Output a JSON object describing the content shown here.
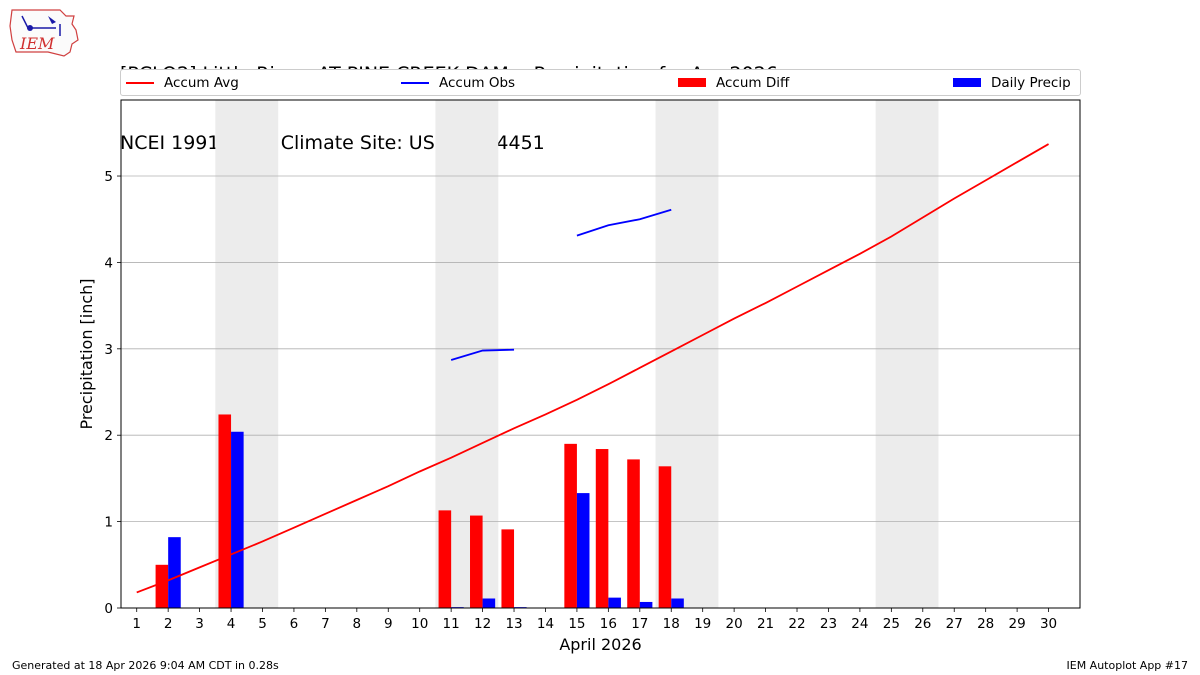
{
  "header": {
    "title_line1": "[PCLO2] Little River  AT PINE CREEK DAM :: Precipitation for Apr 2026",
    "title_line2": "NCEI 1991-2020 Climate Site: USC00344451",
    "logo_text": "IEM"
  },
  "legend": [
    {
      "label": "Accum Avg",
      "kind": "line",
      "color": "#ff0000"
    },
    {
      "label": "Accum Obs",
      "kind": "line",
      "color": "#0000ff"
    },
    {
      "label": "Accum Diff",
      "kind": "patch",
      "color": "#ff0000"
    },
    {
      "label": "Daily Precip",
      "kind": "patch",
      "color": "#0000ff"
    }
  ],
  "footer": {
    "left": "Generated at 18 Apr 2026 9:04 AM CDT in 0.28s",
    "right": "IEM Autoplot App #17"
  },
  "chart_data": {
    "type": "bar",
    "xlabel": "April 2026",
    "ylabel": "Precipitation [inch]",
    "xlim": [
      0.5,
      31.0
    ],
    "ylim": [
      0,
      5.88
    ],
    "yticks": [
      0,
      1,
      2,
      3,
      4,
      5
    ],
    "xticks": [
      1,
      2,
      3,
      4,
      5,
      6,
      7,
      8,
      9,
      10,
      11,
      12,
      13,
      14,
      15,
      16,
      17,
      18,
      19,
      20,
      21,
      22,
      23,
      24,
      25,
      26,
      27,
      28,
      29,
      30
    ],
    "grid": "horizontal",
    "weekend_shading": [
      [
        3.5,
        5.5
      ],
      [
        10.5,
        12.5
      ],
      [
        17.5,
        19.5
      ],
      [
        24.5,
        26.5
      ]
    ],
    "series": [
      {
        "name": "Accum Avg",
        "kind": "line",
        "color": "#ff0000",
        "x": [
          1,
          2,
          3,
          4,
          5,
          6,
          7,
          8,
          9,
          10,
          11,
          12,
          13,
          14,
          15,
          16,
          17,
          18,
          19,
          20,
          21,
          22,
          23,
          24,
          25,
          26,
          27,
          28,
          29,
          30
        ],
        "y": [
          0.18,
          0.32,
          0.47,
          0.62,
          0.77,
          0.93,
          1.09,
          1.25,
          1.41,
          1.58,
          1.74,
          1.91,
          2.08,
          2.24,
          2.41,
          2.59,
          2.78,
          2.97,
          3.16,
          3.35,
          3.53,
          3.72,
          3.91,
          4.1,
          4.3,
          4.52,
          4.74,
          4.95,
          5.16,
          5.37
        ]
      },
      {
        "name": "Accum Obs",
        "kind": "line",
        "color": "#0000ff",
        "segments": [
          {
            "x": [
              11,
              12,
              13
            ],
            "y": [
              2.87,
              2.98,
              2.99
            ]
          },
          {
            "x": [
              15,
              16,
              17,
              18
            ],
            "y": [
              4.31,
              4.43,
              4.5,
              4.61
            ]
          }
        ]
      },
      {
        "name": "Accum Diff",
        "kind": "bar",
        "color": "#ff0000",
        "x": [
          2,
          4,
          11,
          12,
          13,
          15,
          16,
          17,
          18
        ],
        "values": [
          0.5,
          2.24,
          1.13,
          1.07,
          0.91,
          1.9,
          1.84,
          1.72,
          1.64
        ]
      },
      {
        "name": "Daily Precip",
        "kind": "bar",
        "color": "#0000ff",
        "x": [
          2,
          4,
          11,
          12,
          13,
          15,
          16,
          17,
          18
        ],
        "values": [
          0.82,
          2.04,
          0.01,
          0.11,
          0.01,
          1.33,
          0.12,
          0.07,
          0.11
        ]
      }
    ]
  }
}
